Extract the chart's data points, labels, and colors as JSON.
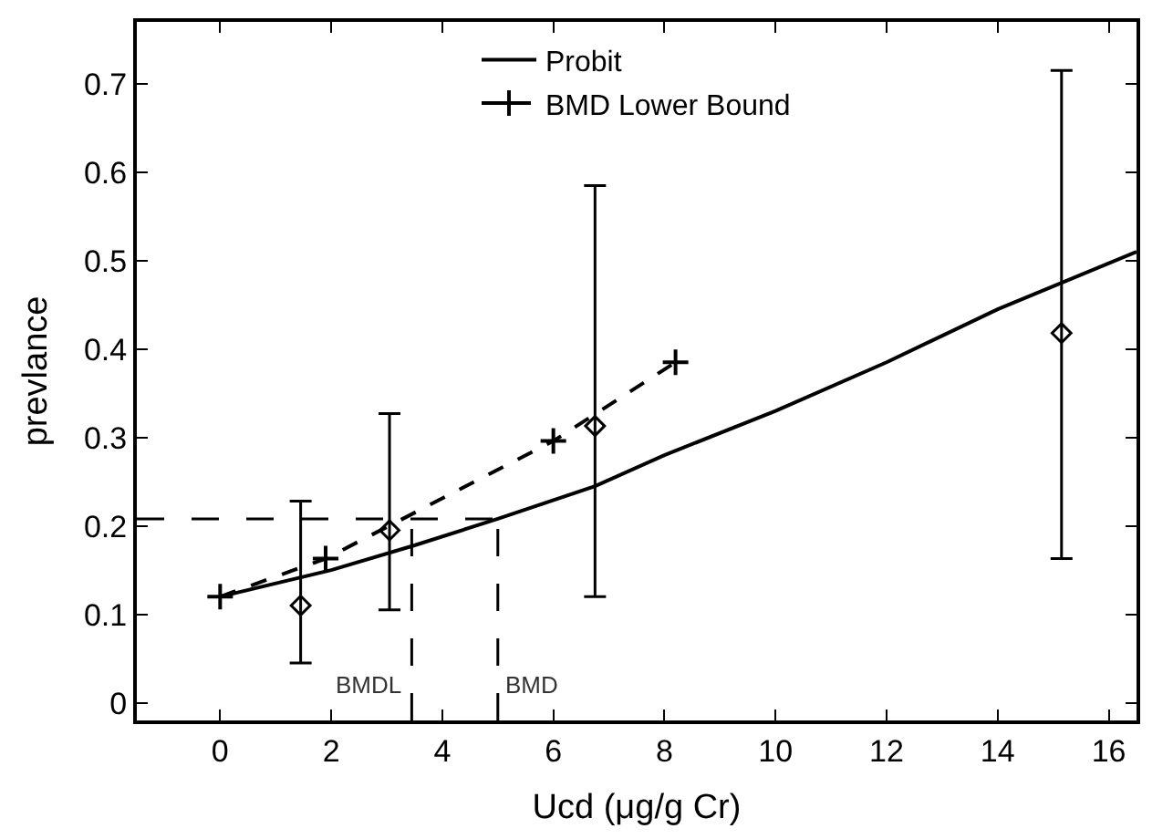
{
  "chart_data": {
    "type": "line",
    "xlabel": "Ucd (μg/g Cr)",
    "ylabel": "prevlance",
    "xlim": [
      -1.5,
      16.5
    ],
    "xticks": [
      0,
      2,
      4,
      6,
      8,
      10,
      12,
      14,
      16
    ],
    "ylim": [
      -0.02,
      0.77
    ],
    "yticks": [
      0,
      0.1,
      0.2,
      0.3,
      0.4,
      0.5,
      0.6,
      0.7
    ],
    "legend": "top",
    "series": [
      {
        "type": "scatter",
        "color": "#000000",
        "marker": "diamond",
        "x": [
          1.45,
          3.05,
          6.75,
          15.15
        ],
        "values": [
          0.11,
          0.195,
          0.313,
          0.418
        ],
        "errors": [
          [
            0.045,
            0.228
          ],
          [
            0.105,
            0.327
          ],
          [
            0.12,
            0.585
          ],
          [
            0.163,
            0.715
          ]
        ]
      },
      {
        "name": "Probit",
        "color": "#000000",
        "line_style": "solid",
        "marker": "none",
        "x": [
          0,
          2,
          3.5,
          5,
          6.75,
          8,
          10,
          12,
          14,
          16.5
        ],
        "values": [
          0.12,
          0.15,
          0.178,
          0.208,
          0.245,
          0.28,
          0.33,
          0.385,
          0.445,
          0.51
        ]
      },
      {
        "name": "BMD Lower Bound",
        "color": "#000000",
        "line_style": "dashed",
        "marker": "cross",
        "x": [
          0,
          1.9,
          6,
          8.2
        ],
        "values": [
          0.12,
          0.163,
          0.296,
          0.385
        ]
      }
    ],
    "ref_lines": [
      {
        "axis": "y",
        "value": 0.208,
        "label": null,
        "line_style": "dashed",
        "color": "#000000"
      },
      {
        "axis": "x",
        "value": 3.45,
        "label": "BMDL",
        "line_style": "dashed",
        "color": "#000000"
      },
      {
        "axis": "x",
        "value": 5,
        "label": "BMD",
        "line_style": "dashed",
        "color": "#000000"
      }
    ]
  }
}
